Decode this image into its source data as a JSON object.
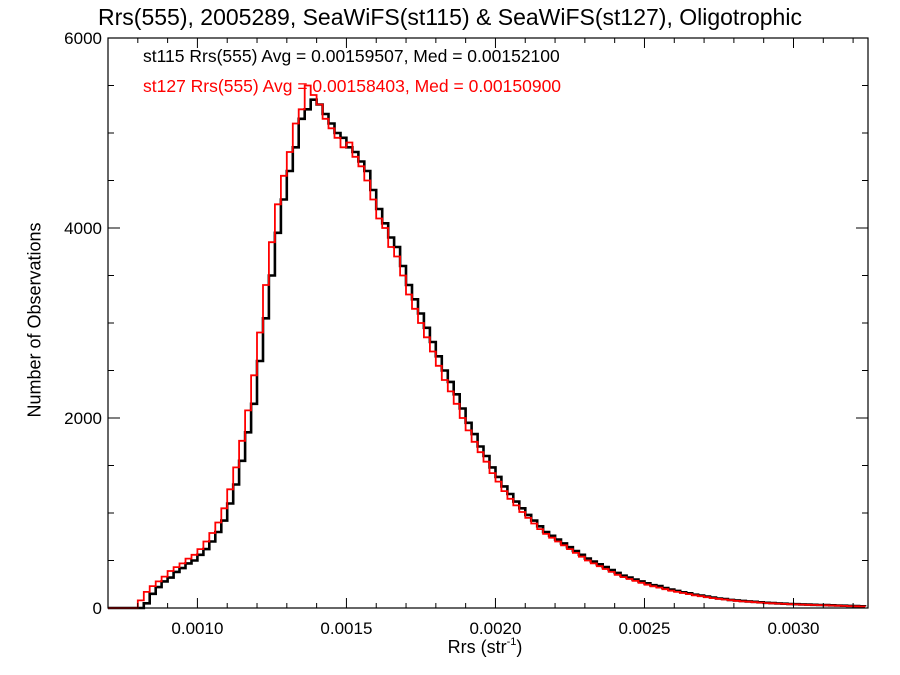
{
  "chart_data": {
    "type": "line",
    "style": "step-histogram",
    "title": "Rrs(555), 2005289, SeaWiFS(st115) & SeaWiFS(st127), Oligotrophic",
    "xlabel_base": "Rrs (str",
    "xlabel_sup": "-1",
    "xlabel_end": ")",
    "ylabel": "Number of Observations",
    "xlim": [
      0.0007,
      0.00325
    ],
    "ylim": [
      0,
      6000
    ],
    "xticks": [
      0.001,
      0.0015,
      0.002,
      0.0025,
      0.003
    ],
    "xtick_labels": [
      "0.0010",
      "0.0015",
      "0.0020",
      "0.0025",
      "0.0030"
    ],
    "yticks": [
      0,
      2000,
      4000,
      6000
    ],
    "ytick_labels": [
      "0",
      "2000",
      "4000",
      "6000"
    ],
    "grid": false,
    "legend_placement": "top-left",
    "annotations": [
      {
        "text": "st115 Rrs(555) Avg = 0.00159507, Med = 0.00152100",
        "color": "#000000"
      },
      {
        "text": "st127 Rrs(555) Avg = 0.00158403, Med = 0.00150900",
        "color": "#ff0000"
      }
    ],
    "series": [
      {
        "name": "st115",
        "color": "#000000",
        "points": [
          [
            0.0007,
            0
          ],
          [
            0.0008,
            0
          ],
          [
            0.00082,
            50
          ],
          [
            0.00084,
            150
          ],
          [
            0.00086,
            220
          ],
          [
            0.00088,
            280
          ],
          [
            0.0009,
            320
          ],
          [
            0.00092,
            380
          ],
          [
            0.00094,
            420
          ],
          [
            0.00096,
            470
          ],
          [
            0.00098,
            500
          ],
          [
            0.001,
            560
          ],
          [
            0.00102,
            620
          ],
          [
            0.00104,
            700
          ],
          [
            0.00106,
            800
          ],
          [
            0.00108,
            920
          ],
          [
            0.0011,
            1100
          ],
          [
            0.00112,
            1300
          ],
          [
            0.00114,
            1550
          ],
          [
            0.00116,
            1850
          ],
          [
            0.00118,
            2150
          ],
          [
            0.0012,
            2600
          ],
          [
            0.00122,
            3050
          ],
          [
            0.00124,
            3500
          ],
          [
            0.00126,
            3950
          ],
          [
            0.00128,
            4300
          ],
          [
            0.0013,
            4600
          ],
          [
            0.00132,
            4850
          ],
          [
            0.00134,
            5150
          ],
          [
            0.00136,
            5250
          ],
          [
            0.00138,
            5350
          ],
          [
            0.0014,
            5300
          ],
          [
            0.00142,
            5200
          ],
          [
            0.00144,
            5100
          ],
          [
            0.00146,
            5000
          ],
          [
            0.00148,
            4950
          ],
          [
            0.0015,
            4850
          ],
          [
            0.00152,
            4800
          ],
          [
            0.00154,
            4700
          ],
          [
            0.00156,
            4600
          ],
          [
            0.00158,
            4400
          ],
          [
            0.0016,
            4200
          ],
          [
            0.00162,
            4050
          ],
          [
            0.00164,
            3900
          ],
          [
            0.00166,
            3800
          ],
          [
            0.00168,
            3600
          ],
          [
            0.0017,
            3400
          ],
          [
            0.00172,
            3250
          ],
          [
            0.00174,
            3100
          ],
          [
            0.00176,
            2950
          ],
          [
            0.00178,
            2800
          ],
          [
            0.0018,
            2650
          ],
          [
            0.00182,
            2500
          ],
          [
            0.00184,
            2380
          ],
          [
            0.00186,
            2250
          ],
          [
            0.00188,
            2100
          ],
          [
            0.0019,
            1950
          ],
          [
            0.00192,
            1830
          ],
          [
            0.00194,
            1700
          ],
          [
            0.00196,
            1600
          ],
          [
            0.00198,
            1480
          ],
          [
            0.002,
            1380
          ],
          [
            0.00202,
            1280
          ],
          [
            0.00204,
            1200
          ],
          [
            0.00206,
            1120
          ],
          [
            0.00208,
            1050
          ],
          [
            0.0021,
            980
          ],
          [
            0.00212,
            920
          ],
          [
            0.00214,
            860
          ],
          [
            0.00216,
            800
          ],
          [
            0.00218,
            760
          ],
          [
            0.0022,
            720
          ],
          [
            0.00222,
            680
          ],
          [
            0.00224,
            640
          ],
          [
            0.00226,
            600
          ],
          [
            0.00228,
            560
          ],
          [
            0.0023,
            520
          ],
          [
            0.00232,
            490
          ],
          [
            0.00234,
            460
          ],
          [
            0.00236,
            430
          ],
          [
            0.00238,
            400
          ],
          [
            0.0024,
            370
          ],
          [
            0.00242,
            340
          ],
          [
            0.00244,
            320
          ],
          [
            0.00246,
            300
          ],
          [
            0.00248,
            280
          ],
          [
            0.0025,
            260
          ],
          [
            0.00252,
            240
          ],
          [
            0.00254,
            230
          ],
          [
            0.00256,
            210
          ],
          [
            0.00258,
            195
          ],
          [
            0.0026,
            180
          ],
          [
            0.00262,
            165
          ],
          [
            0.00264,
            155
          ],
          [
            0.00266,
            140
          ],
          [
            0.00268,
            130
          ],
          [
            0.0027,
            120
          ],
          [
            0.00272,
            110
          ],
          [
            0.00274,
            100
          ],
          [
            0.00276,
            95
          ],
          [
            0.00278,
            85
          ],
          [
            0.0028,
            80
          ],
          [
            0.00282,
            75
          ],
          [
            0.00284,
            70
          ],
          [
            0.00286,
            65
          ],
          [
            0.00288,
            60
          ],
          [
            0.0029,
            55
          ],
          [
            0.00292,
            52
          ],
          [
            0.00294,
            48
          ],
          [
            0.00296,
            45
          ],
          [
            0.00298,
            42
          ],
          [
            0.003,
            40
          ],
          [
            0.00302,
            38
          ],
          [
            0.00304,
            36
          ],
          [
            0.00306,
            34
          ],
          [
            0.00308,
            32
          ],
          [
            0.0031,
            30
          ],
          [
            0.00312,
            28
          ],
          [
            0.00314,
            26
          ],
          [
            0.00316,
            24
          ],
          [
            0.00318,
            22
          ],
          [
            0.0032,
            20
          ],
          [
            0.00322,
            18
          ],
          [
            0.00324,
            16
          ]
        ]
      },
      {
        "name": "st127",
        "color": "#ff0000",
        "points": [
          [
            0.0007,
            0
          ],
          [
            0.00078,
            0
          ],
          [
            0.0008,
            80
          ],
          [
            0.00082,
            170
          ],
          [
            0.00084,
            230
          ],
          [
            0.00086,
            280
          ],
          [
            0.00088,
            330
          ],
          [
            0.0009,
            390
          ],
          [
            0.00092,
            430
          ],
          [
            0.00094,
            470
          ],
          [
            0.00096,
            520
          ],
          [
            0.00098,
            560
          ],
          [
            0.001,
            620
          ],
          [
            0.00102,
            700
          ],
          [
            0.00104,
            790
          ],
          [
            0.00106,
            900
          ],
          [
            0.00108,
            1050
          ],
          [
            0.0011,
            1250
          ],
          [
            0.00112,
            1480
          ],
          [
            0.00114,
            1760
          ],
          [
            0.00116,
            2080
          ],
          [
            0.00118,
            2450
          ],
          [
            0.0012,
            2900
          ],
          [
            0.00122,
            3400
          ],
          [
            0.00124,
            3850
          ],
          [
            0.00126,
            4250
          ],
          [
            0.00128,
            4550
          ],
          [
            0.0013,
            4800
          ],
          [
            0.00132,
            5100
          ],
          [
            0.00134,
            5250
          ],
          [
            0.00136,
            5500
          ],
          [
            0.00138,
            5400
          ],
          [
            0.0014,
            5300
          ],
          [
            0.00142,
            5150
          ],
          [
            0.00144,
            5050
          ],
          [
            0.00146,
            4950
          ],
          [
            0.00148,
            4850
          ],
          [
            0.0015,
            4900
          ],
          [
            0.00152,
            4750
          ],
          [
            0.00154,
            4650
          ],
          [
            0.00156,
            4500
          ],
          [
            0.00158,
            4300
          ],
          [
            0.0016,
            4100
          ],
          [
            0.00162,
            4000
          ],
          [
            0.00164,
            3800
          ],
          [
            0.00166,
            3700
          ],
          [
            0.00168,
            3500
          ],
          [
            0.0017,
            3300
          ],
          [
            0.00172,
            3150
          ],
          [
            0.00174,
            3000
          ],
          [
            0.00176,
            2850
          ],
          [
            0.00178,
            2700
          ],
          [
            0.0018,
            2550
          ],
          [
            0.00182,
            2400
          ],
          [
            0.00184,
            2280
          ],
          [
            0.00186,
            2150
          ],
          [
            0.00188,
            2000
          ],
          [
            0.0019,
            1870
          ],
          [
            0.00192,
            1750
          ],
          [
            0.00194,
            1640
          ],
          [
            0.00196,
            1540
          ],
          [
            0.00198,
            1420
          ],
          [
            0.002,
            1330
          ],
          [
            0.00202,
            1230
          ],
          [
            0.00204,
            1150
          ],
          [
            0.00206,
            1080
          ],
          [
            0.00208,
            1010
          ],
          [
            0.0021,
            950
          ],
          [
            0.00212,
            890
          ],
          [
            0.00214,
            830
          ],
          [
            0.00216,
            780
          ],
          [
            0.00218,
            740
          ],
          [
            0.0022,
            700
          ],
          [
            0.00222,
            660
          ],
          [
            0.00224,
            620
          ],
          [
            0.00226,
            580
          ],
          [
            0.00228,
            540
          ],
          [
            0.0023,
            500
          ],
          [
            0.00232,
            470
          ],
          [
            0.00234,
            440
          ],
          [
            0.00236,
            410
          ],
          [
            0.00238,
            380
          ],
          [
            0.0024,
            350
          ],
          [
            0.00242,
            325
          ],
          [
            0.00244,
            305
          ],
          [
            0.00246,
            285
          ],
          [
            0.00248,
            265
          ],
          [
            0.0025,
            245
          ],
          [
            0.00252,
            228
          ],
          [
            0.00254,
            215
          ],
          [
            0.00256,
            198
          ],
          [
            0.00258,
            182
          ],
          [
            0.0026,
            170
          ],
          [
            0.00262,
            158
          ],
          [
            0.00264,
            146
          ],
          [
            0.00266,
            134
          ],
          [
            0.00268,
            124
          ],
          [
            0.0027,
            114
          ],
          [
            0.00272,
            104
          ],
          [
            0.00274,
            96
          ],
          [
            0.00276,
            90
          ],
          [
            0.00278,
            82
          ],
          [
            0.0028,
            76
          ],
          [
            0.00282,
            70
          ],
          [
            0.00284,
            66
          ],
          [
            0.00286,
            61
          ],
          [
            0.00288,
            57
          ],
          [
            0.0029,
            52
          ],
          [
            0.00292,
            49
          ],
          [
            0.00294,
            46
          ],
          [
            0.00296,
            43
          ],
          [
            0.00298,
            40
          ],
          [
            0.003,
            38
          ],
          [
            0.00302,
            36
          ],
          [
            0.00304,
            34
          ],
          [
            0.00306,
            32
          ],
          [
            0.00308,
            30
          ],
          [
            0.0031,
            28
          ],
          [
            0.00312,
            26
          ],
          [
            0.00314,
            24
          ],
          [
            0.00316,
            22
          ],
          [
            0.00318,
            20
          ],
          [
            0.0032,
            18
          ],
          [
            0.00322,
            16
          ],
          [
            0.00324,
            14
          ]
        ]
      }
    ]
  }
}
